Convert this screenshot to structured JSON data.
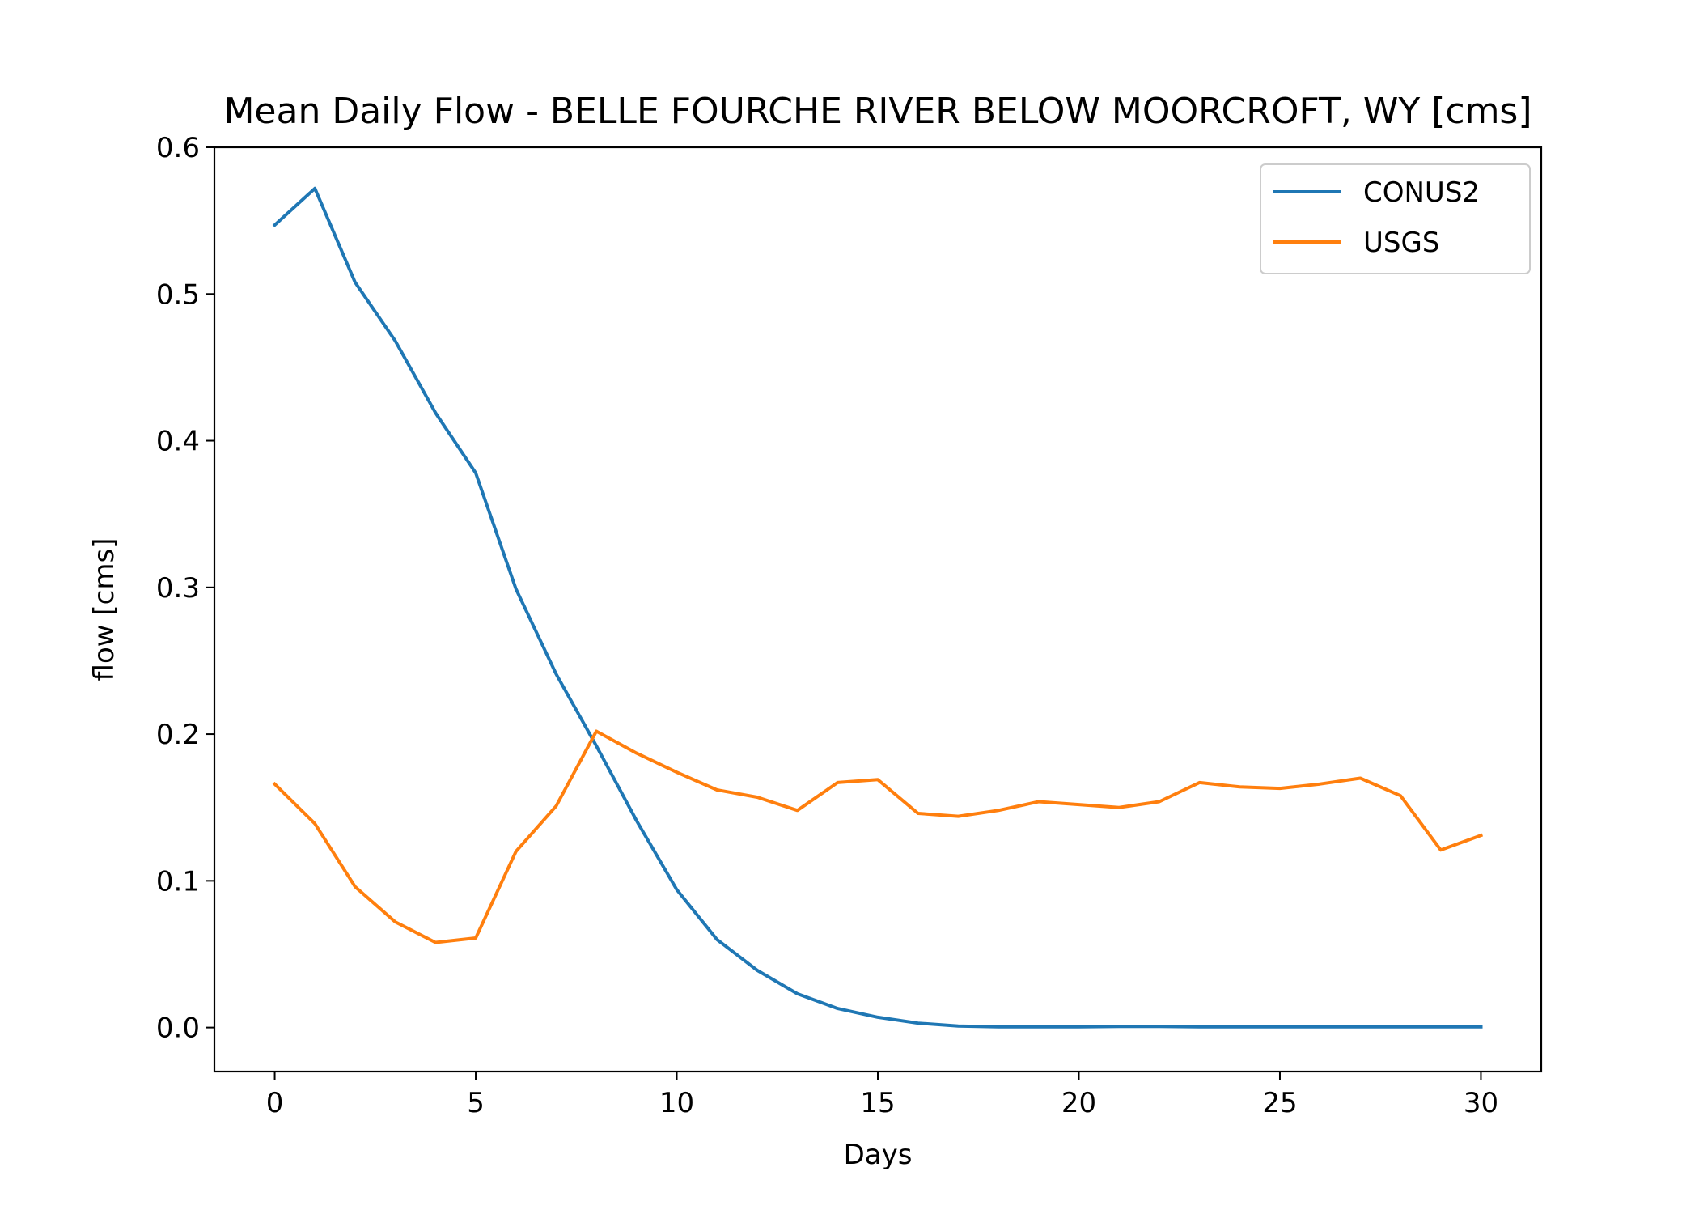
{
  "chart_data": {
    "type": "line",
    "title": "Mean Daily Flow - BELLE FOURCHE RIVER BELOW MOORCROFT, WY [cms]",
    "xlabel": "Days",
    "ylabel": "flow [cms]",
    "xlim": [
      -1.5,
      31.5
    ],
    "ylim": [
      -0.03,
      0.6
    ],
    "xticks": [
      0,
      5,
      10,
      15,
      20,
      25,
      30
    ],
    "yticks": [
      0.0,
      0.1,
      0.2,
      0.3,
      0.4,
      0.5,
      0.6
    ],
    "ytick_labels": [
      "0.0",
      "0.1",
      "0.2",
      "0.3",
      "0.4",
      "0.5",
      "0.6"
    ],
    "grid": false,
    "legend_position": "top-right",
    "x": [
      0,
      1,
      2,
      3,
      4,
      5,
      6,
      7,
      8,
      9,
      10,
      11,
      12,
      13,
      14,
      15,
      16,
      17,
      18,
      19,
      20,
      21,
      22,
      23,
      24,
      25,
      26,
      27,
      28,
      29,
      30
    ],
    "series": [
      {
        "name": "CONUS2",
        "color": "#1f77b4",
        "values": [
          0.547,
          0.572,
          0.508,
          0.468,
          0.419,
          0.378,
          0.299,
          0.241,
          0.192,
          0.141,
          0.094,
          0.06,
          0.039,
          0.023,
          0.013,
          0.007,
          0.003,
          0.001,
          0.0005,
          0.0005,
          0.0005,
          0.0008,
          0.0008,
          0.0005,
          0.0005,
          0.0005,
          0.0005,
          0.0005,
          0.0005,
          0.0005,
          0.0005
        ]
      },
      {
        "name": "USGS",
        "color": "#ff7f0e",
        "values": [
          0.166,
          0.139,
          0.096,
          0.072,
          0.058,
          0.061,
          0.12,
          0.151,
          0.202,
          0.187,
          0.174,
          0.162,
          0.157,
          0.148,
          0.167,
          0.169,
          0.146,
          0.144,
          0.148,
          0.154,
          0.152,
          0.15,
          0.154,
          0.167,
          0.164,
          0.163,
          0.166,
          0.17,
          0.158,
          0.121,
          0.131
        ]
      }
    ]
  }
}
